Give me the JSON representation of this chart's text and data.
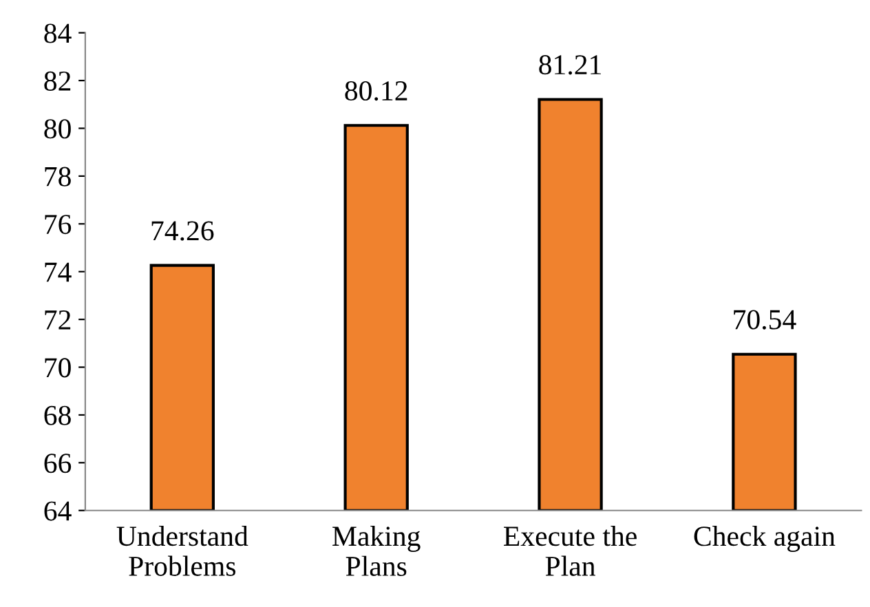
{
  "chart_data": {
    "type": "bar",
    "categories": [
      "Understand\nProblems",
      "Making\nPlans",
      "Execute the\nPlan",
      "Check again"
    ],
    "values": [
      74.26,
      80.12,
      81.21,
      70.54
    ],
    "color": "#f0822e",
    "ylim": [
      64,
      84
    ],
    "yticks": [
      64,
      66,
      68,
      70,
      72,
      74,
      76,
      78,
      80,
      82,
      84
    ],
    "data_labels": true,
    "grid": false
  }
}
